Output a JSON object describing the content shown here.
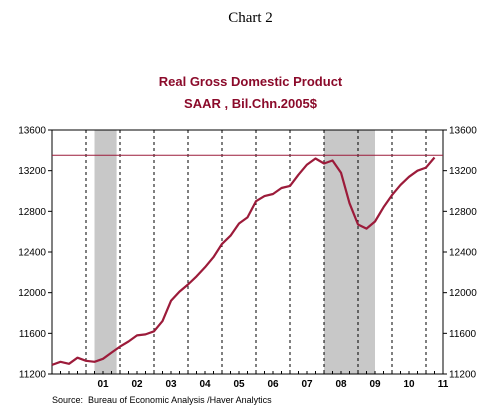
{
  "chart_number": "Chart 2",
  "chart_data": {
    "type": "line",
    "title": "Real Gross Domestic Product",
    "subtitle": "SAAR , Bil.Chn.2005$",
    "xlabel": "",
    "ylabel": "",
    "ylim": [
      11200,
      13600
    ],
    "yticks": [
      11200,
      11600,
      12000,
      12400,
      12800,
      13200,
      13600
    ],
    "ytick_labels": [
      "11200",
      "11600",
      "12000",
      "12400",
      "12800",
      "13200",
      "13600"
    ],
    "x_range": [
      2000.0,
      2011.5
    ],
    "x_ticks": [
      {
        "label": "01",
        "year": 2001
      },
      {
        "label": "02",
        "year": 2002
      },
      {
        "label": "03",
        "year": 2003
      },
      {
        "label": "04",
        "year": 2004
      },
      {
        "label": "05",
        "year": 2005
      },
      {
        "label": "06",
        "year": 2006
      },
      {
        "label": "07",
        "year": 2007
      },
      {
        "label": "08",
        "year": 2008
      },
      {
        "label": "09",
        "year": 2009
      },
      {
        "label": "10",
        "year": 2010
      },
      {
        "label": "11",
        "year": 2011
      }
    ],
    "recessions": [
      {
        "start": 2001.25,
        "end": 2001.9
      },
      {
        "start": 2008.0,
        "end": 2009.5
      }
    ],
    "reference_line": 13352,
    "grid": "vertical dashed at year boundaries",
    "legend": "none",
    "series": [
      {
        "color": "#9c1b3a",
        "x": [
          2000.0,
          2000.25,
          2000.5,
          2000.75,
          2001.0,
          2001.25,
          2001.5,
          2001.75,
          2002.0,
          2002.25,
          2002.5,
          2002.75,
          2003.0,
          2003.25,
          2003.5,
          2003.75,
          2004.0,
          2004.25,
          2004.5,
          2004.75,
          2005.0,
          2005.25,
          2005.5,
          2005.75,
          2006.0,
          2006.25,
          2006.5,
          2006.75,
          2007.0,
          2007.25,
          2007.5,
          2007.75,
          2008.0,
          2008.25,
          2008.5,
          2008.75,
          2009.0,
          2009.25,
          2009.5,
          2009.75,
          2010.0,
          2010.25,
          2010.5,
          2010.75,
          2011.0,
          2011.25
        ],
        "values": [
          11290,
          11320,
          11300,
          11360,
          11330,
          11320,
          11350,
          11410,
          11470,
          11520,
          11580,
          11590,
          11620,
          11720,
          11920,
          12010,
          12080,
          12160,
          12250,
          12350,
          12480,
          12560,
          12680,
          12740,
          12900,
          12950,
          12970,
          13030,
          13050,
          13160,
          13260,
          13320,
          13270,
          13300,
          13180,
          12880,
          12670,
          12630,
          12700,
          12840,
          12960,
          13060,
          13140,
          13200,
          13230,
          13330
        ]
      }
    ],
    "source": "Source:  Bureau of Economic Analysis /Haver Analytics"
  }
}
